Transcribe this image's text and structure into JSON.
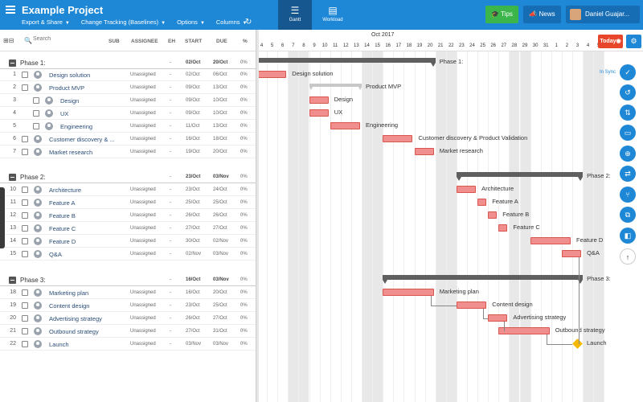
{
  "header": {
    "project_title": "Example Project",
    "menus": [
      "Export & Share",
      "Change Tracking (Baselines)",
      "Options",
      "Columns"
    ],
    "views": [
      {
        "label": "Gantt",
        "icon": "gantt-icon"
      },
      {
        "label": "Workload",
        "icon": "workload-icon"
      }
    ],
    "tips_label": "Tips",
    "news_label": "News",
    "user_name": "Daniel Guajar..."
  },
  "grid_header": {
    "search_placeholder": "Search",
    "col_sub": "SUB",
    "col_assignee": "ASSIGNEE",
    "col_eh": "EH",
    "col_start": "START",
    "col_due": "DUE",
    "col_pct": "%"
  },
  "rows": [
    {
      "type": "phase",
      "name": "Phase 1:",
      "eh": "-",
      "start": "02/Oct",
      "due": "20/Oct",
      "pct": "0%"
    },
    {
      "type": "task",
      "num": "1",
      "name": "Design solution",
      "assignee": "Unassigned",
      "eh": "-",
      "start": "02/Oct",
      "due": "06/Oct",
      "pct": "0%",
      "indent": 0
    },
    {
      "type": "task",
      "num": "2",
      "name": "Product MVP",
      "assignee": "Unassigned",
      "eh": "-",
      "start": "09/Oct",
      "due": "13/Oct",
      "pct": "0%",
      "indent": 0
    },
    {
      "type": "task",
      "num": "3",
      "name": "Design",
      "assignee": "Unassigned",
      "eh": "-",
      "start": "09/Oct",
      "due": "10/Oct",
      "pct": "0%",
      "indent": 1
    },
    {
      "type": "task",
      "num": "4",
      "name": "UX",
      "assignee": "Unassigned",
      "eh": "-",
      "start": "09/Oct",
      "due": "10/Oct",
      "pct": "0%",
      "indent": 1
    },
    {
      "type": "task",
      "num": "5",
      "name": "Engineering",
      "assignee": "Unassigned",
      "eh": "-",
      "start": "11/Oct",
      "due": "13/Oct",
      "pct": "0%",
      "indent": 1
    },
    {
      "type": "task",
      "num": "6",
      "name": "Customer discovery & ...",
      "assignee": "Unassigned",
      "eh": "-",
      "start": "16/Oct",
      "due": "18/Oct",
      "pct": "0%",
      "indent": 0
    },
    {
      "type": "task",
      "num": "7",
      "name": "Market research",
      "assignee": "Unassigned",
      "eh": "-",
      "start": "19/Oct",
      "due": "20/Oct",
      "pct": "0%",
      "indent": 0
    },
    {
      "type": "phase",
      "name": "Phase 2:",
      "eh": "-",
      "start": "23/Oct",
      "due": "03/Nov",
      "pct": "0%"
    },
    {
      "type": "task",
      "num": "10",
      "name": "Architecture",
      "assignee": "Unassigned",
      "eh": "-",
      "start": "23/Oct",
      "due": "24/Oct",
      "pct": "0%",
      "indent": 0
    },
    {
      "type": "task",
      "num": "11",
      "name": "Feature A",
      "assignee": "Unassigned",
      "eh": "-",
      "start": "25/Oct",
      "due": "25/Oct",
      "pct": "0%",
      "indent": 0
    },
    {
      "type": "task",
      "num": "12",
      "name": "Feature B",
      "assignee": "Unassigned",
      "eh": "-",
      "start": "26/Oct",
      "due": "26/Oct",
      "pct": "0%",
      "indent": 0
    },
    {
      "type": "task",
      "num": "13",
      "name": "Feature C",
      "assignee": "Unassigned",
      "eh": "-",
      "start": "27/Oct",
      "due": "27/Oct",
      "pct": "0%",
      "indent": 0
    },
    {
      "type": "task",
      "num": "14",
      "name": "Feature D",
      "assignee": "Unassigned",
      "eh": "-",
      "start": "30/Oct",
      "due": "02/Nov",
      "pct": "0%",
      "indent": 0
    },
    {
      "type": "task",
      "num": "15",
      "name": "Q&A",
      "assignee": "Unassigned",
      "eh": "-",
      "start": "02/Nov",
      "due": "03/Nov",
      "pct": "0%",
      "indent": 0
    },
    {
      "type": "phase",
      "name": "Phase 3:",
      "eh": "-",
      "start": "16/Oct",
      "due": "03/Nov",
      "pct": "0%"
    },
    {
      "type": "task",
      "num": "18",
      "name": "Marketing plan",
      "assignee": "Unassigned",
      "eh": "-",
      "start": "16/Oct",
      "due": "20/Oct",
      "pct": "0%",
      "indent": 0
    },
    {
      "type": "task",
      "num": "19",
      "name": "Content design",
      "assignee": "Unassigned",
      "eh": "-",
      "start": "23/Oct",
      "due": "25/Oct",
      "pct": "0%",
      "indent": 0
    },
    {
      "type": "task",
      "num": "20",
      "name": "Advertising strategy",
      "assignee": "Unassigned",
      "eh": "-",
      "start": "26/Oct",
      "due": "27/Oct",
      "pct": "0%",
      "indent": 0
    },
    {
      "type": "task",
      "num": "21",
      "name": "Outbound strategy",
      "assignee": "Unassigned",
      "eh": "-",
      "start": "27/Oct",
      "due": "31/Oct",
      "pct": "0%",
      "indent": 0
    },
    {
      "type": "task",
      "num": "22",
      "name": "Launch",
      "assignee": "Unassigned",
      "eh": "-",
      "start": "03/Nov",
      "due": "03/Nov",
      "pct": "0%",
      "indent": 0
    }
  ],
  "timeline": {
    "month_label": "Oct 2017",
    "days": [
      "4",
      "5",
      "6",
      "7",
      "8",
      "9",
      "10",
      "11",
      "12",
      "13",
      "14",
      "15",
      "16",
      "17",
      "18",
      "19",
      "20",
      "21",
      "22",
      "23",
      "24",
      "25",
      "26",
      "27",
      "28",
      "29",
      "30",
      "31",
      "1",
      "2",
      "3",
      "4",
      "5",
      "6"
    ],
    "weekend_days": [
      "7",
      "8",
      "14",
      "15",
      "21",
      "22",
      "28",
      "29",
      "4",
      "5"
    ],
    "today_label": "Today",
    "sync_label": "In Sync",
    "bars": [
      {
        "label": "Phase 1:",
        "kind": "phase",
        "row": 0,
        "start": "2017-10-02",
        "end": "2017-10-20"
      },
      {
        "label": "Design solution",
        "kind": "task",
        "row": 1,
        "start": "2017-10-02",
        "end": "2017-10-06"
      },
      {
        "label": "Product MVP",
        "kind": "parent",
        "row": 2,
        "start": "2017-10-09",
        "end": "2017-10-13"
      },
      {
        "label": "Design",
        "kind": "task",
        "row": 3,
        "start": "2017-10-09",
        "end": "2017-10-10"
      },
      {
        "label": "UX",
        "kind": "task",
        "row": 4,
        "start": "2017-10-09",
        "end": "2017-10-10"
      },
      {
        "label": "Engineering",
        "kind": "task",
        "row": 5,
        "start": "2017-10-11",
        "end": "2017-10-13"
      },
      {
        "label": "Customer discovery & Product Validation",
        "kind": "task",
        "row": 6,
        "start": "2017-10-16",
        "end": "2017-10-18"
      },
      {
        "label": "Market research",
        "kind": "task",
        "row": 7,
        "start": "2017-10-19",
        "end": "2017-10-20"
      },
      {
        "label": "Phase 2:",
        "kind": "phase",
        "row": 8,
        "start": "2017-10-23",
        "end": "2017-11-03"
      },
      {
        "label": "Architecture",
        "kind": "task",
        "row": 9,
        "start": "2017-10-23",
        "end": "2017-10-24"
      },
      {
        "label": "Feature A",
        "kind": "task",
        "row": 10,
        "start": "2017-10-25",
        "end": "2017-10-25"
      },
      {
        "label": "Feature B",
        "kind": "task",
        "row": 11,
        "start": "2017-10-26",
        "end": "2017-10-26"
      },
      {
        "label": "Feature C",
        "kind": "task",
        "row": 12,
        "start": "2017-10-27",
        "end": "2017-10-27"
      },
      {
        "label": "Feature D",
        "kind": "task",
        "row": 13,
        "start": "2017-10-30",
        "end": "2017-11-02"
      },
      {
        "label": "Q&A",
        "kind": "task",
        "row": 14,
        "start": "2017-11-02",
        "end": "2017-11-03"
      },
      {
        "label": "Phase 3:",
        "kind": "phase",
        "row": 15,
        "start": "2017-10-16",
        "end": "2017-11-03"
      },
      {
        "label": "Marketing plan",
        "kind": "task",
        "row": 16,
        "start": "2017-10-16",
        "end": "2017-10-20"
      },
      {
        "label": "Content design",
        "kind": "task",
        "row": 17,
        "start": "2017-10-23",
        "end": "2017-10-25"
      },
      {
        "label": "Advertising strategy",
        "kind": "task",
        "row": 18,
        "start": "2017-10-26",
        "end": "2017-10-27"
      },
      {
        "label": "Outbound strategy",
        "kind": "task",
        "row": 19,
        "start": "2017-10-27",
        "end": "2017-10-31"
      },
      {
        "label": "Launch",
        "kind": "milestone",
        "row": 20,
        "start": "2017-11-03",
        "end": "2017-11-03"
      }
    ]
  },
  "tools": [
    "check-icon",
    "history-icon",
    "sort-icon",
    "baseline-icon",
    "zoom-icon",
    "truck-icon",
    "branch-icon",
    "copy-icon",
    "map-icon",
    "arrow-up-icon"
  ],
  "colors": {
    "accent": "#1e88d6",
    "task_bar": "#f18e8e",
    "phase_bar": "#5f5f5f",
    "today": "#e8462b",
    "milestone": "#f5b800"
  }
}
